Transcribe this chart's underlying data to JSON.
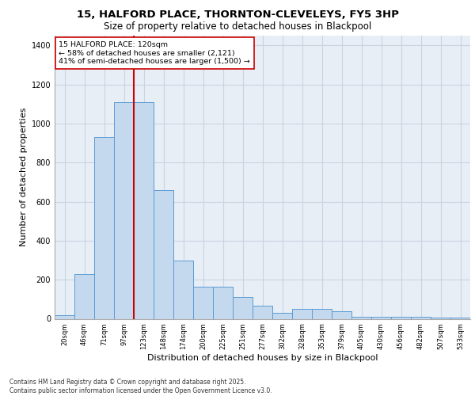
{
  "title_line1": "15, HALFORD PLACE, THORNTON-CLEVELEYS, FY5 3HP",
  "title_line2": "Size of property relative to detached houses in Blackpool",
  "xlabel": "Distribution of detached houses by size in Blackpool",
  "ylabel": "Number of detached properties",
  "categories": [
    "20sqm",
    "46sqm",
    "71sqm",
    "97sqm",
    "123sqm",
    "148sqm",
    "174sqm",
    "200sqm",
    "225sqm",
    "251sqm",
    "277sqm",
    "302sqm",
    "328sqm",
    "353sqm",
    "379sqm",
    "405sqm",
    "430sqm",
    "456sqm",
    "482sqm",
    "507sqm",
    "533sqm"
  ],
  "values": [
    20,
    230,
    930,
    1110,
    1110,
    660,
    300,
    165,
    165,
    110,
    65,
    30,
    50,
    50,
    40,
    10,
    10,
    10,
    10,
    5,
    5
  ],
  "bar_color": "#c5d9ee",
  "bar_edge_color": "#5b9bd5",
  "grid_color": "#c8d4e3",
  "background_color": "#e8eef6",
  "vline_color": "#cc0000",
  "annotation_text": "15 HALFORD PLACE: 120sqm\n← 58% of detached houses are smaller (2,121)\n41% of semi-detached houses are larger (1,500) →",
  "annotation_box_color": "#ffffff",
  "annotation_box_edge": "#cc0000",
  "footnote": "Contains HM Land Registry data © Crown copyright and database right 2025.\nContains public sector information licensed under the Open Government Licence v3.0.",
  "ylim": [
    0,
    1450
  ],
  "yticks": [
    0,
    200,
    400,
    600,
    800,
    1000,
    1200,
    1400
  ]
}
